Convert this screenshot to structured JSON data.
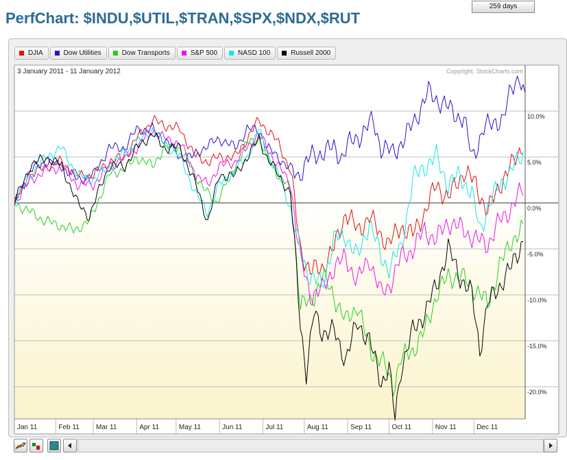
{
  "title": "PerfChart: $INDU,$UTIL,$TRAN,$SPX,$NDX,$RUT",
  "date_range": "3 January 2011 - 11 January 2012",
  "copyright": "Copyright, StockCharts.com",
  "days_label": "259 days",
  "legend": [
    {
      "label": "DJIA",
      "color": "#e01010"
    },
    {
      "label": "Dow Utilities",
      "color": "#2a10c8"
    },
    {
      "label": "Dow Transports",
      "color": "#22d022"
    },
    {
      "label": "S&P 500",
      "color": "#ee10ee"
    },
    {
      "label": "NASD 100",
      "color": "#14e6e6"
    },
    {
      "label": "Russell 2000",
      "color": "#000000"
    }
  ],
  "icons": [
    "line-chart-icon",
    "histogram-icon",
    "candle-icon",
    "arrow-left-icon",
    "arrow-right-icon"
  ],
  "chart_data": {
    "type": "line",
    "x_labels": [
      "Jan 11",
      "Feb 11",
      "Mar 11",
      "Apr 11",
      "May 11",
      "Jun 11",
      "Jul 11",
      "Aug 11",
      "Sep 11",
      "Oct 11",
      "Nov 11",
      "Dec 11"
    ],
    "y_ticks": [
      10,
      5,
      0,
      -5,
      -10,
      -15,
      -20
    ],
    "y_tick_labels": [
      "10.0%",
      "5.0%",
      "0.0%",
      "-5.0%",
      "-10.0%",
      "-15.0%",
      "-20.0%"
    ],
    "ylim": [
      -23.5,
      15
    ],
    "grid": true,
    "legend_position": "top-left",
    "series": [
      {
        "name": "DJIA",
        "color": "#e01010",
        "keypoints": [
          [
            0,
            0
          ],
          [
            8,
            3
          ],
          [
            16,
            4
          ],
          [
            24,
            4.5
          ],
          [
            32,
            3
          ],
          [
            40,
            3
          ],
          [
            48,
            4.5
          ],
          [
            56,
            5
          ],
          [
            62,
            7
          ],
          [
            70,
            9
          ],
          [
            76,
            8.5
          ],
          [
            84,
            8
          ],
          [
            92,
            5
          ],
          [
            98,
            4.5
          ],
          [
            104,
            5
          ],
          [
            112,
            5
          ],
          [
            118,
            7
          ],
          [
            124,
            9
          ],
          [
            128,
            8
          ],
          [
            134,
            6.5
          ],
          [
            140,
            3.5
          ],
          [
            145,
            -5
          ],
          [
            150,
            -7.5
          ],
          [
            156,
            -7
          ],
          [
            162,
            -5
          ],
          [
            168,
            -1
          ],
          [
            174,
            -3
          ],
          [
            180,
            -1.5
          ],
          [
            186,
            -3.5
          ],
          [
            190,
            -4.5
          ],
          [
            196,
            -2.5
          ],
          [
            202,
            -3.5
          ],
          [
            208,
            -1
          ],
          [
            214,
            2
          ],
          [
            220,
            0.5
          ],
          [
            228,
            3.5
          ],
          [
            234,
            2
          ],
          [
            240,
            -1
          ],
          [
            246,
            2
          ],
          [
            252,
            4
          ],
          [
            258,
            6.5
          ]
        ]
      },
      {
        "name": "Dow Utilities",
        "color": "#2a10c8",
        "keypoints": [
          [
            0,
            0
          ],
          [
            8,
            3.5
          ],
          [
            16,
            4.5
          ],
          [
            24,
            4
          ],
          [
            32,
            2.5
          ],
          [
            40,
            3
          ],
          [
            48,
            6
          ],
          [
            56,
            6
          ],
          [
            62,
            8
          ],
          [
            70,
            8
          ],
          [
            76,
            7
          ],
          [
            84,
            5
          ],
          [
            90,
            5
          ],
          [
            96,
            6
          ],
          [
            104,
            7
          ],
          [
            112,
            6
          ],
          [
            118,
            8
          ],
          [
            124,
            8
          ],
          [
            128,
            6
          ],
          [
            134,
            5
          ],
          [
            138,
            4
          ],
          [
            144,
            3
          ],
          [
            150,
            5
          ],
          [
            156,
            5.5
          ],
          [
            162,
            6
          ],
          [
            166,
            5
          ],
          [
            170,
            6.5
          ],
          [
            176,
            7.5
          ],
          [
            182,
            9
          ],
          [
            186,
            6
          ],
          [
            192,
            5.5
          ],
          [
            198,
            7
          ],
          [
            204,
            9.5
          ],
          [
            210,
            12
          ],
          [
            216,
            11
          ],
          [
            222,
            10
          ],
          [
            228,
            9
          ],
          [
            232,
            5
          ],
          [
            238,
            8
          ],
          [
            244,
            9
          ],
          [
            248,
            9
          ],
          [
            252,
            12.5
          ],
          [
            256,
            14
          ],
          [
            259,
            11
          ]
        ]
      },
      {
        "name": "Dow Transports",
        "color": "#22d022",
        "keypoints": [
          [
            0,
            0
          ],
          [
            8,
            -1
          ],
          [
            16,
            -2
          ],
          [
            24,
            -2.5
          ],
          [
            30,
            -3
          ],
          [
            38,
            -2
          ],
          [
            48,
            3
          ],
          [
            58,
            4
          ],
          [
            62,
            5
          ],
          [
            70,
            4
          ],
          [
            76,
            6
          ],
          [
            84,
            6
          ],
          [
            92,
            3
          ],
          [
            98,
            1
          ],
          [
            102,
            0
          ],
          [
            112,
            4
          ],
          [
            118,
            6.5
          ],
          [
            124,
            7
          ],
          [
            128,
            5
          ],
          [
            134,
            3
          ],
          [
            140,
            1.5
          ],
          [
            145,
            -11
          ],
          [
            150,
            -11
          ],
          [
            156,
            -8
          ],
          [
            162,
            -10
          ],
          [
            168,
            -13
          ],
          [
            174,
            -11
          ],
          [
            180,
            -16
          ],
          [
            186,
            -17
          ],
          [
            192,
            -20
          ],
          [
            196,
            -17
          ],
          [
            202,
            -16
          ],
          [
            208,
            -14
          ],
          [
            214,
            -10
          ],
          [
            220,
            -8
          ],
          [
            226,
            -8
          ],
          [
            232,
            -9
          ],
          [
            240,
            -11
          ],
          [
            246,
            -7
          ],
          [
            252,
            -4
          ],
          [
            258,
            -3
          ]
        ]
      },
      {
        "name": "S&P 500",
        "color": "#ee10ee",
        "keypoints": [
          [
            0,
            0
          ],
          [
            8,
            2.5
          ],
          [
            16,
            3.5
          ],
          [
            24,
            4
          ],
          [
            32,
            2
          ],
          [
            40,
            2
          ],
          [
            48,
            4
          ],
          [
            56,
            5
          ],
          [
            62,
            6
          ],
          [
            70,
            8
          ],
          [
            76,
            7
          ],
          [
            84,
            6.5
          ],
          [
            92,
            3
          ],
          [
            98,
            2
          ],
          [
            104,
            4
          ],
          [
            112,
            4.5
          ],
          [
            118,
            6
          ],
          [
            124,
            7.5
          ],
          [
            128,
            6
          ],
          [
            134,
            4
          ],
          [
            140,
            2
          ],
          [
            145,
            -6
          ],
          [
            150,
            -10
          ],
          [
            156,
            -9.5
          ],
          [
            162,
            -7
          ],
          [
            168,
            -6
          ],
          [
            174,
            -8.5
          ],
          [
            180,
            -6
          ],
          [
            186,
            -10
          ],
          [
            190,
            -9
          ],
          [
            196,
            -6
          ],
          [
            202,
            -5
          ],
          [
            208,
            -3
          ],
          [
            214,
            -4
          ],
          [
            220,
            -2
          ],
          [
            228,
            -3
          ],
          [
            234,
            -4
          ],
          [
            240,
            -4.5
          ],
          [
            246,
            -2
          ],
          [
            252,
            -0.5
          ],
          [
            258,
            1.5
          ]
        ]
      },
      {
        "name": "NASD 100",
        "color": "#14e6e6",
        "keypoints": [
          [
            0,
            0
          ],
          [
            8,
            3
          ],
          [
            16,
            5
          ],
          [
            24,
            6
          ],
          [
            32,
            3
          ],
          [
            40,
            2.5
          ],
          [
            48,
            4
          ],
          [
            56,
            5.5
          ],
          [
            62,
            6.5
          ],
          [
            70,
            8
          ],
          [
            76,
            6.5
          ],
          [
            84,
            5
          ],
          [
            92,
            1
          ],
          [
            98,
            -1
          ],
          [
            104,
            2
          ],
          [
            112,
            3.5
          ],
          [
            118,
            5
          ],
          [
            124,
            8
          ],
          [
            128,
            5.5
          ],
          [
            134,
            3
          ],
          [
            140,
            -0.5
          ],
          [
            145,
            -5.5
          ],
          [
            150,
            -8
          ],
          [
            156,
            -9
          ],
          [
            162,
            -4
          ],
          [
            168,
            -3.5
          ],
          [
            174,
            -6
          ],
          [
            180,
            -2
          ],
          [
            186,
            -6
          ],
          [
            190,
            -7
          ],
          [
            196,
            -5
          ],
          [
            202,
            2.5
          ],
          [
            208,
            4
          ],
          [
            214,
            5
          ],
          [
            220,
            2
          ],
          [
            226,
            3
          ],
          [
            232,
            1
          ],
          [
            236,
            -3
          ],
          [
            240,
            -0.5
          ],
          [
            246,
            2
          ],
          [
            252,
            3.5
          ],
          [
            258,
            5.5
          ]
        ]
      },
      {
        "name": "Russell 2000",
        "color": "#000000",
        "keypoints": [
          [
            0,
            0
          ],
          [
            8,
            4
          ],
          [
            16,
            5
          ],
          [
            24,
            4
          ],
          [
            32,
            0
          ],
          [
            38,
            -1.5
          ],
          [
            44,
            2
          ],
          [
            48,
            4
          ],
          [
            56,
            4
          ],
          [
            62,
            6
          ],
          [
            70,
            7.5
          ],
          [
            76,
            6
          ],
          [
            84,
            6
          ],
          [
            92,
            2
          ],
          [
            98,
            -2
          ],
          [
            104,
            3
          ],
          [
            112,
            3
          ],
          [
            118,
            5
          ],
          [
            124,
            7
          ],
          [
            128,
            5
          ],
          [
            134,
            3
          ],
          [
            140,
            1
          ],
          [
            145,
            -13
          ],
          [
            148,
            -18.5
          ],
          [
            152,
            -12
          ],
          [
            156,
            -14
          ],
          [
            162,
            -14
          ],
          [
            168,
            -17
          ],
          [
            174,
            -13
          ],
          [
            180,
            -15
          ],
          [
            186,
            -19.5
          ],
          [
            190,
            -18
          ],
          [
            193,
            -23.5
          ],
          [
            196,
            -18
          ],
          [
            202,
            -14
          ],
          [
            208,
            -12
          ],
          [
            214,
            -9
          ],
          [
            220,
            -5
          ],
          [
            226,
            -8
          ],
          [
            232,
            -10
          ],
          [
            236,
            -16
          ],
          [
            240,
            -11
          ],
          [
            246,
            -9
          ],
          [
            252,
            -7
          ],
          [
            258,
            -4
          ]
        ]
      }
    ]
  }
}
